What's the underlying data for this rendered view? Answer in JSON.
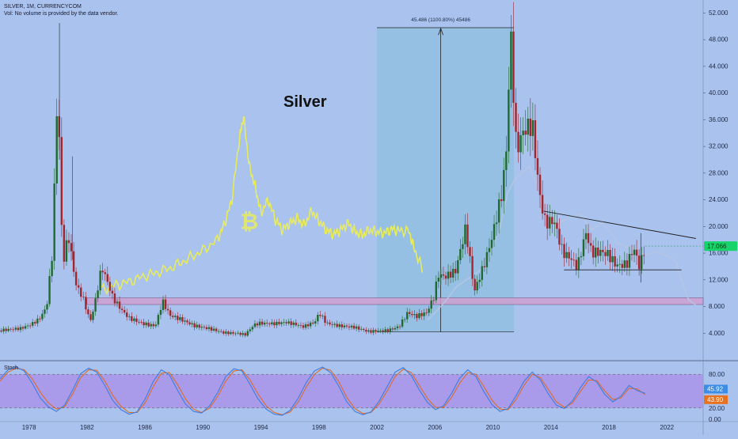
{
  "header": {
    "symbol_line": "SILVER, 1M, CURRENCYCOM",
    "vol_note": "Vol: No volume is provided by the data vendor."
  },
  "annotation": {
    "big_label": "Silver",
    "measure_label": "45.486 (1100.80%) 45486",
    "bitcoin_symbol": "₿"
  },
  "colors": {
    "background": "#a9c2ee",
    "bull": "#1f6b2e",
    "bear": "#a3262c",
    "bitcoin_overlay": "#e8ec5a",
    "ghost_overlay": "#b8c6e2",
    "range_box": "#8fbfe0",
    "zone": "#cfa0d0",
    "stoch_band": "#a98ee8",
    "stoch_k": "#3d7de0",
    "stoch_d": "#e06a2a",
    "price_badge": "#16d46a",
    "k_badge": "#3d8de6",
    "d_badge": "#e8721f"
  },
  "chart_data": [
    {
      "type": "candlestick",
      "title": "SILVER, 1M, CURRENCYCOM",
      "x_ticks": [
        "1978",
        "1982",
        "1986",
        "1990",
        "1994",
        "1998",
        "2002",
        "2006",
        "2010",
        "2014",
        "2018",
        "2022"
      ],
      "y_ticks": [
        "52.000",
        "48.000",
        "44.000",
        "40.000",
        "36.000",
        "32.000",
        "28.000",
        "24.000",
        "20.000",
        "16.000",
        "12.000",
        "8.000",
        "4.000"
      ],
      "xlim": [
        1976.0,
        2024.5
      ],
      "ylim": [
        0,
        53
      ],
      "last_price": "17.066",
      "series": [
        {
          "name": "price",
          "points": [
            [
              1976.0,
              4.4
            ],
            [
              1976.8,
              4.5
            ],
            [
              1977.5,
              4.6
            ],
            [
              1978.2,
              5.1
            ],
            [
              1978.8,
              5.9
            ],
            [
              1979.3,
              7.6
            ],
            [
              1979.7,
              15.5
            ],
            [
              1980.05,
              39.0
            ],
            [
              1980.2,
              30.0
            ],
            [
              1980.4,
              13.5
            ],
            [
              1980.8,
              18.0
            ],
            [
              1981.3,
              11.0
            ],
            [
              1981.8,
              9.0
            ],
            [
              1982.3,
              5.6
            ],
            [
              1982.6,
              8.0
            ],
            [
              1983.1,
              13.8
            ],
            [
              1983.4,
              12.2
            ],
            [
              1983.9,
              9.2
            ],
            [
              1984.5,
              7.5
            ],
            [
              1985.0,
              6.4
            ],
            [
              1986.0,
              5.6
            ],
            [
              1986.8,
              5.3
            ],
            [
              1987.3,
              9.2
            ],
            [
              1987.8,
              7.0
            ],
            [
              1988.5,
              6.4
            ],
            [
              1989.5,
              5.3
            ],
            [
              1990.5,
              4.8
            ],
            [
              1991.5,
              4.1
            ],
            [
              1992.5,
              3.9
            ],
            [
              1993.0,
              3.7
            ],
            [
              1993.6,
              5.1
            ],
            [
              1994.0,
              5.3
            ],
            [
              1995.0,
              5.2
            ],
            [
              1995.8,
              5.4
            ],
            [
              1996.5,
              5.1
            ],
            [
              1997.0,
              4.8
            ],
            [
              1997.8,
              5.5
            ],
            [
              1998.1,
              6.9
            ],
            [
              1998.6,
              5.4
            ],
            [
              1999.5,
              5.1
            ],
            [
              2000.5,
              5.0
            ],
            [
              2001.5,
              4.4
            ],
            [
              2002.0,
              4.5
            ],
            [
              2002.8,
              4.6
            ],
            [
              2003.6,
              5.2
            ],
            [
              2004.2,
              7.4
            ],
            [
              2004.8,
              6.8
            ],
            [
              2005.5,
              7.3
            ],
            [
              2006.0,
              9.6
            ],
            [
              2006.3,
              13.0
            ],
            [
              2006.8,
              12.6
            ],
            [
              2007.5,
              13.3
            ],
            [
              2008.2,
              19.5
            ],
            [
              2008.8,
              10.0
            ],
            [
              2009.5,
              14.0
            ],
            [
              2010.0,
              17.5
            ],
            [
              2010.7,
              24.0
            ],
            [
              2011.0,
              30.0
            ],
            [
              2011.3,
              47.0
            ],
            [
              2011.7,
              30.0
            ],
            [
              2012.2,
              33.0
            ],
            [
              2012.8,
              34.0
            ],
            [
              2013.3,
              24.0
            ],
            [
              2013.7,
              20.0
            ],
            [
              2014.3,
              20.5
            ],
            [
              2014.9,
              16.0
            ],
            [
              2015.5,
              15.2
            ],
            [
              2015.9,
              14.0
            ],
            [
              2016.5,
              19.5
            ],
            [
              2016.9,
              16.5
            ],
            [
              2017.5,
              16.8
            ],
            [
              2018.0,
              16.5
            ],
            [
              2018.6,
              14.8
            ],
            [
              2019.3,
              15.0
            ],
            [
              2019.8,
              17.5
            ],
            [
              2020.2,
              14.5
            ],
            [
              2020.5,
              17.066
            ]
          ]
        },
        {
          "name": "bitcoin overlay",
          "points": [
            [
              1983.0,
              10.5
            ],
            [
              1984.0,
              11.2
            ],
            [
              1985.0,
              11.8
            ],
            [
              1986.0,
              12.6
            ],
            [
              1987.0,
              13.2
            ],
            [
              1988.0,
              14.0
            ],
            [
              1989.0,
              15.2
            ],
            [
              1990.0,
              16.4
            ],
            [
              1991.0,
              18.0
            ],
            [
              1991.5,
              20.5
            ],
            [
              1992.0,
              24.0
            ],
            [
              1992.5,
              33.0
            ],
            [
              1992.8,
              36.5
            ],
            [
              1993.2,
              29.0
            ],
            [
              1993.6,
              26.0
            ],
            [
              1994.0,
              22.0
            ],
            [
              1994.5,
              24.0
            ],
            [
              1995.0,
              21.0
            ],
            [
              1995.5,
              19.5
            ],
            [
              1996.0,
              20.5
            ],
            [
              1996.5,
              21.2
            ],
            [
              1997.0,
              20.2
            ],
            [
              1997.5,
              22.4
            ],
            [
              1998.0,
              20.8
            ],
            [
              1998.5,
              19.5
            ],
            [
              1999.0,
              18.8
            ],
            [
              1999.5,
              19.5
            ],
            [
              2000.0,
              20.5
            ],
            [
              2000.5,
              19.2
            ],
            [
              2001.0,
              18.7
            ],
            [
              2001.5,
              19.5
            ],
            [
              2002.0,
              19.2
            ],
            [
              2002.5,
              19.0
            ],
            [
              2003.0,
              19.6
            ],
            [
              2003.5,
              19.4
            ],
            [
              2004.2,
              19.3
            ],
            [
              2004.6,
              16.5
            ],
            [
              2005.2,
              13.2
            ]
          ]
        },
        {
          "name": "ghost overlay",
          "points": [
            [
              2005.5,
              6.0
            ],
            [
              2006.2,
              7.5
            ],
            [
              2006.8,
              9.0
            ],
            [
              2007.5,
              11.0
            ],
            [
              2008.5,
              12.5
            ],
            [
              2009.5,
              14.0
            ],
            [
              2010.5,
              20.0
            ],
            [
              2011.0,
              25.0
            ],
            [
              2011.5,
              27.0
            ],
            [
              2012.5,
              29.0
            ],
            [
              2013.5,
              24.0
            ],
            [
              2014.5,
              20.5
            ],
            [
              2015.5,
              21.5
            ],
            [
              2016.0,
              22.0
            ],
            [
              2016.8,
              19.5
            ],
            [
              2017.5,
              20.5
            ],
            [
              2018.0,
              19.5
            ],
            [
              2018.6,
              17.5
            ],
            [
              2019.2,
              17.0
            ],
            [
              2019.8,
              16.8
            ],
            [
              2020.5,
              15.7
            ],
            [
              2021.3,
              16.2
            ],
            [
              2022.0,
              15.6
            ],
            [
              2022.6,
              14.8
            ],
            [
              2023.0,
              12.0
            ],
            [
              2023.5,
              9.0
            ],
            [
              2024.0,
              8.2
            ]
          ]
        }
      ]
    },
    {
      "type": "line",
      "title": "Stoch",
      "y_ticks": [
        "80.00",
        "20.00",
        "0.00"
      ],
      "ylim": [
        0,
        100
      ],
      "band": [
        20,
        80
      ],
      "k_last": "45.92",
      "d_last": "43.90",
      "series": [
        {
          "name": "%K",
          "values": [
            72,
            88,
            93,
            86,
            64,
            38,
            22,
            14,
            25,
            52,
            81,
            91,
            84,
            60,
            33,
            17,
            9,
            13,
            36,
            67,
            88,
            79,
            52,
            27,
            14,
            11,
            24,
            48,
            76,
            90,
            86,
            62,
            36,
            18,
            9,
            7,
            16,
            38,
            66,
            86,
            93,
            83,
            59,
            31,
            14,
            8,
            13,
            32,
            58,
            84,
            92,
            78,
            52,
            30,
            17,
            24,
            46,
            73,
            88,
            76,
            49,
            26,
            14,
            19,
            42,
            68,
            84,
            70,
            45,
            25,
            19,
            33,
            57,
            76,
            66,
            44,
            31,
            41,
            60,
            51,
            46
          ]
        },
        {
          "name": "%D",
          "values": [
            68,
            84,
            91,
            88,
            72,
            48,
            29,
            18,
            22,
            45,
            74,
            88,
            87,
            68,
            42,
            23,
            12,
            12,
            29,
            58,
            82,
            83,
            62,
            36,
            18,
            12,
            20,
            41,
            68,
            86,
            88,
            70,
            45,
            24,
            12,
            8,
            13,
            31,
            58,
            80,
            91,
            87,
            67,
            39,
            19,
            10,
            12,
            27,
            50,
            76,
            89,
            83,
            60,
            37,
            21,
            21,
            39,
            64,
            83,
            80,
            58,
            34,
            18,
            17,
            35,
            61,
            80,
            74,
            53,
            31,
            21,
            29,
            50,
            70,
            69,
            50,
            35,
            38,
            55,
            54,
            43.9
          ]
        }
      ]
    }
  ]
}
